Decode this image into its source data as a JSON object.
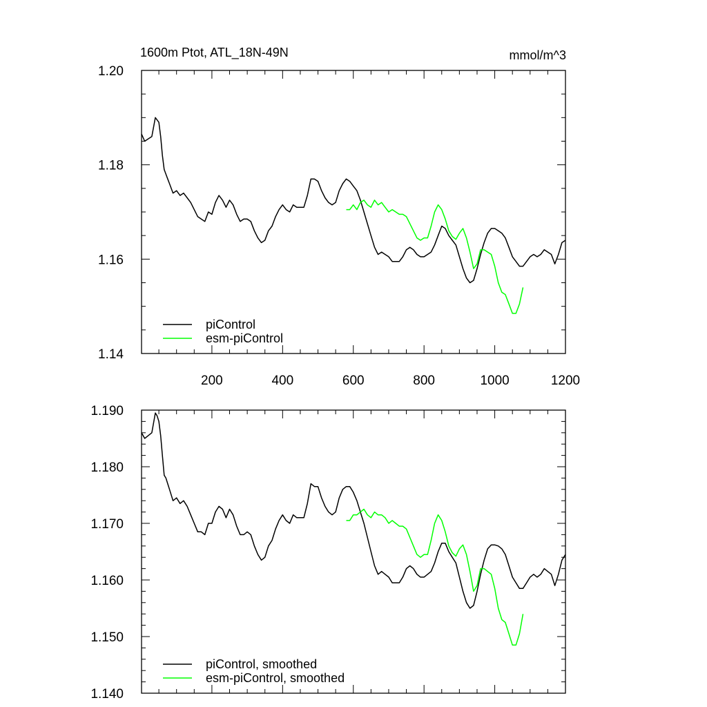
{
  "chart_data": [
    {
      "type": "line",
      "title": "1600m Ptot, ATL_18N-49N",
      "units": "mmol/m^3",
      "xlim": [
        1,
        1200
      ],
      "ylim": [
        1.14,
        1.2
      ],
      "xticks": [
        200,
        400,
        600,
        800,
        1000,
        1200
      ],
      "xtick_labels": [
        "200",
        "400",
        "600",
        "800",
        "1000",
        "1200"
      ],
      "yticks": [
        1.14,
        1.16,
        1.18,
        1.2
      ],
      "ytick_labels": [
        "1.14",
        "1.16",
        "1.18",
        "1.20"
      ],
      "legend_position": "bottom-left",
      "series": [
        {
          "name": "piControl",
          "color": "#000000",
          "x": [
            1,
            10,
            20,
            30,
            40,
            45,
            50,
            55,
            60,
            65,
            70,
            75,
            80,
            90,
            100,
            110,
            120,
            130,
            140,
            150,
            160,
            170,
            180,
            190,
            200,
            210,
            220,
            230,
            240,
            250,
            260,
            270,
            280,
            290,
            300,
            310,
            320,
            330,
            340,
            350,
            360,
            370,
            380,
            390,
            400,
            410,
            420,
            430,
            440,
            450,
            460,
            470,
            480,
            490,
            500,
            510,
            520,
            530,
            540,
            550,
            560,
            570,
            580,
            590,
            600,
            610,
            620,
            630,
            640,
            650,
            660,
            670,
            680,
            690,
            700,
            710,
            720,
            730,
            740,
            750,
            760,
            770,
            780,
            790,
            800,
            810,
            820,
            830,
            840,
            850,
            860,
            870,
            880,
            890,
            900,
            910,
            920,
            930,
            940,
            950,
            960,
            970,
            980,
            990,
            1000,
            1010,
            1020,
            1030,
            1040,
            1050,
            1060,
            1070,
            1080,
            1090,
            1100,
            1110,
            1120,
            1130,
            1140,
            1150,
            1160,
            1170,
            1180,
            1190,
            1200
          ],
          "y": [
            1.1865,
            1.185,
            1.1855,
            1.186,
            1.19,
            1.1895,
            1.189,
            1.186,
            1.182,
            1.179,
            1.178,
            1.177,
            1.176,
            1.174,
            1.1745,
            1.1735,
            1.174,
            1.173,
            1.172,
            1.1705,
            1.169,
            1.1685,
            1.168,
            1.17,
            1.1695,
            1.172,
            1.1735,
            1.1725,
            1.171,
            1.1725,
            1.1715,
            1.1695,
            1.168,
            1.1685,
            1.1685,
            1.168,
            1.166,
            1.1645,
            1.1635,
            1.164,
            1.166,
            1.167,
            1.169,
            1.1705,
            1.1715,
            1.1705,
            1.17,
            1.1715,
            1.171,
            1.171,
            1.171,
            1.1735,
            1.177,
            1.177,
            1.1765,
            1.1745,
            1.173,
            1.172,
            1.1715,
            1.172,
            1.1745,
            1.176,
            1.177,
            1.1765,
            1.1755,
            1.1745,
            1.1725,
            1.17,
            1.1675,
            1.165,
            1.1625,
            1.161,
            1.1615,
            1.161,
            1.1605,
            1.1595,
            1.1595,
            1.1595,
            1.1605,
            1.162,
            1.1625,
            1.162,
            1.161,
            1.1605,
            1.1605,
            1.161,
            1.1615,
            1.163,
            1.165,
            1.167,
            1.1665,
            1.165,
            1.164,
            1.163,
            1.1605,
            1.158,
            1.156,
            1.155,
            1.1555,
            1.158,
            1.161,
            1.1635,
            1.1655,
            1.1665,
            1.1665,
            1.166,
            1.1655,
            1.1645,
            1.1625,
            1.1605,
            1.1595,
            1.1585,
            1.1585,
            1.1595,
            1.1605,
            1.161,
            1.1605,
            1.161,
            1.162,
            1.1615,
            1.161,
            1.159,
            1.161,
            1.1635,
            1.164
          ]
        },
        {
          "name": "esm-piControl",
          "color": "#00ff00",
          "x": [
            580,
            590,
            600,
            610,
            620,
            630,
            640,
            650,
            660,
            670,
            680,
            690,
            700,
            710,
            720,
            730,
            740,
            750,
            760,
            770,
            780,
            790,
            800,
            810,
            820,
            830,
            840,
            850,
            860,
            870,
            880,
            890,
            900,
            910,
            920,
            930,
            940,
            950,
            960,
            970,
            980,
            990,
            1000,
            1010,
            1020,
            1030,
            1040,
            1050,
            1060,
            1070,
            1080
          ],
          "y": [
            1.1705,
            1.1705,
            1.1715,
            1.1705,
            1.172,
            1.1725,
            1.1715,
            1.171,
            1.1725,
            1.1715,
            1.172,
            1.171,
            1.17,
            1.1705,
            1.17,
            1.1695,
            1.1695,
            1.169,
            1.1675,
            1.166,
            1.1645,
            1.164,
            1.1645,
            1.1645,
            1.167,
            1.17,
            1.1715,
            1.1705,
            1.1685,
            1.166,
            1.1648,
            1.1642,
            1.1655,
            1.1665,
            1.1645,
            1.1615,
            1.158,
            1.159,
            1.162,
            1.162,
            1.1615,
            1.161,
            1.1585,
            1.155,
            1.153,
            1.1525,
            1.1505,
            1.1485,
            1.1485,
            1.1505,
            1.154
          ]
        }
      ]
    },
    {
      "type": "line",
      "title": "",
      "xlim": [
        1,
        1200
      ],
      "ylim": [
        1.14,
        1.19
      ],
      "xticks": [
        200,
        400,
        600,
        800,
        1000,
        1200
      ],
      "yticks": [
        1.14,
        1.15,
        1.16,
        1.17,
        1.18,
        1.19
      ],
      "ytick_labels": [
        "1.140",
        "1.150",
        "1.160",
        "1.170",
        "1.180",
        "1.190"
      ],
      "legend_position": "bottom-left",
      "series": [
        {
          "name": "piControl, smoothed",
          "color": "#000000",
          "x": [
            1,
            10,
            20,
            30,
            40,
            45,
            50,
            55,
            60,
            65,
            70,
            75,
            80,
            90,
            100,
            110,
            120,
            130,
            140,
            150,
            160,
            170,
            180,
            190,
            200,
            210,
            220,
            230,
            240,
            250,
            260,
            270,
            280,
            290,
            300,
            310,
            320,
            330,
            340,
            350,
            360,
            370,
            380,
            390,
            400,
            410,
            420,
            430,
            440,
            450,
            460,
            470,
            480,
            490,
            500,
            510,
            520,
            530,
            540,
            550,
            560,
            570,
            580,
            590,
            600,
            610,
            620,
            630,
            640,
            650,
            660,
            670,
            680,
            690,
            700,
            710,
            720,
            730,
            740,
            750,
            760,
            770,
            780,
            790,
            800,
            810,
            820,
            830,
            840,
            850,
            860,
            870,
            880,
            890,
            900,
            910,
            920,
            930,
            940,
            950,
            960,
            970,
            980,
            990,
            1000,
            1010,
            1020,
            1030,
            1040,
            1050,
            1060,
            1070,
            1080,
            1090,
            1100,
            1110,
            1120,
            1130,
            1140,
            1150,
            1160,
            1170,
            1180,
            1190,
            1200
          ],
          "y": [
            1.186,
            1.185,
            1.1855,
            1.186,
            1.1895,
            1.189,
            1.188,
            1.1855,
            1.182,
            1.1785,
            1.178,
            1.177,
            1.176,
            1.174,
            1.1745,
            1.1735,
            1.174,
            1.173,
            1.1715,
            1.17,
            1.1685,
            1.1685,
            1.168,
            1.17,
            1.17,
            1.172,
            1.173,
            1.1725,
            1.171,
            1.1725,
            1.1715,
            1.1695,
            1.168,
            1.168,
            1.1685,
            1.168,
            1.166,
            1.1645,
            1.1635,
            1.164,
            1.166,
            1.167,
            1.169,
            1.1705,
            1.1715,
            1.1705,
            1.17,
            1.1715,
            1.171,
            1.171,
            1.171,
            1.1735,
            1.177,
            1.1765,
            1.1765,
            1.1745,
            1.173,
            1.172,
            1.1715,
            1.172,
            1.1745,
            1.176,
            1.1765,
            1.1765,
            1.1755,
            1.174,
            1.172,
            1.17,
            1.1675,
            1.165,
            1.1625,
            1.161,
            1.1615,
            1.161,
            1.1605,
            1.1595,
            1.1595,
            1.1595,
            1.1605,
            1.162,
            1.1625,
            1.162,
            1.161,
            1.1605,
            1.1605,
            1.161,
            1.1615,
            1.163,
            1.165,
            1.1665,
            1.1665,
            1.165,
            1.164,
            1.163,
            1.1605,
            1.158,
            1.156,
            1.155,
            1.1555,
            1.158,
            1.161,
            1.1635,
            1.1655,
            1.1662,
            1.1662,
            1.166,
            1.1655,
            1.1645,
            1.1625,
            1.1605,
            1.1595,
            1.1585,
            1.1585,
            1.1595,
            1.1605,
            1.161,
            1.1605,
            1.161,
            1.162,
            1.1615,
            1.161,
            1.159,
            1.161,
            1.1635,
            1.1645
          ]
        },
        {
          "name": "esm-piControl, smoothed",
          "color": "#00ff00",
          "x": [
            580,
            590,
            600,
            610,
            620,
            630,
            640,
            650,
            660,
            670,
            680,
            690,
            700,
            710,
            720,
            730,
            740,
            750,
            760,
            770,
            780,
            790,
            800,
            810,
            820,
            830,
            840,
            850,
            860,
            870,
            880,
            890,
            900,
            910,
            920,
            930,
            940,
            950,
            960,
            970,
            980,
            990,
            1000,
            1010,
            1020,
            1030,
            1040,
            1050,
            1060,
            1070,
            1080
          ],
          "y": [
            1.1705,
            1.1705,
            1.1715,
            1.1715,
            1.172,
            1.1725,
            1.1715,
            1.171,
            1.172,
            1.1715,
            1.1715,
            1.171,
            1.17,
            1.1705,
            1.17,
            1.1695,
            1.1695,
            1.169,
            1.1675,
            1.166,
            1.1645,
            1.164,
            1.1645,
            1.1645,
            1.167,
            1.17,
            1.1715,
            1.1705,
            1.1685,
            1.166,
            1.1648,
            1.1642,
            1.1655,
            1.1662,
            1.1645,
            1.1615,
            1.158,
            1.159,
            1.162,
            1.162,
            1.1615,
            1.161,
            1.1585,
            1.155,
            1.153,
            1.1525,
            1.1505,
            1.1485,
            1.1485,
            1.1505,
            1.154
          ]
        }
      ]
    }
  ]
}
